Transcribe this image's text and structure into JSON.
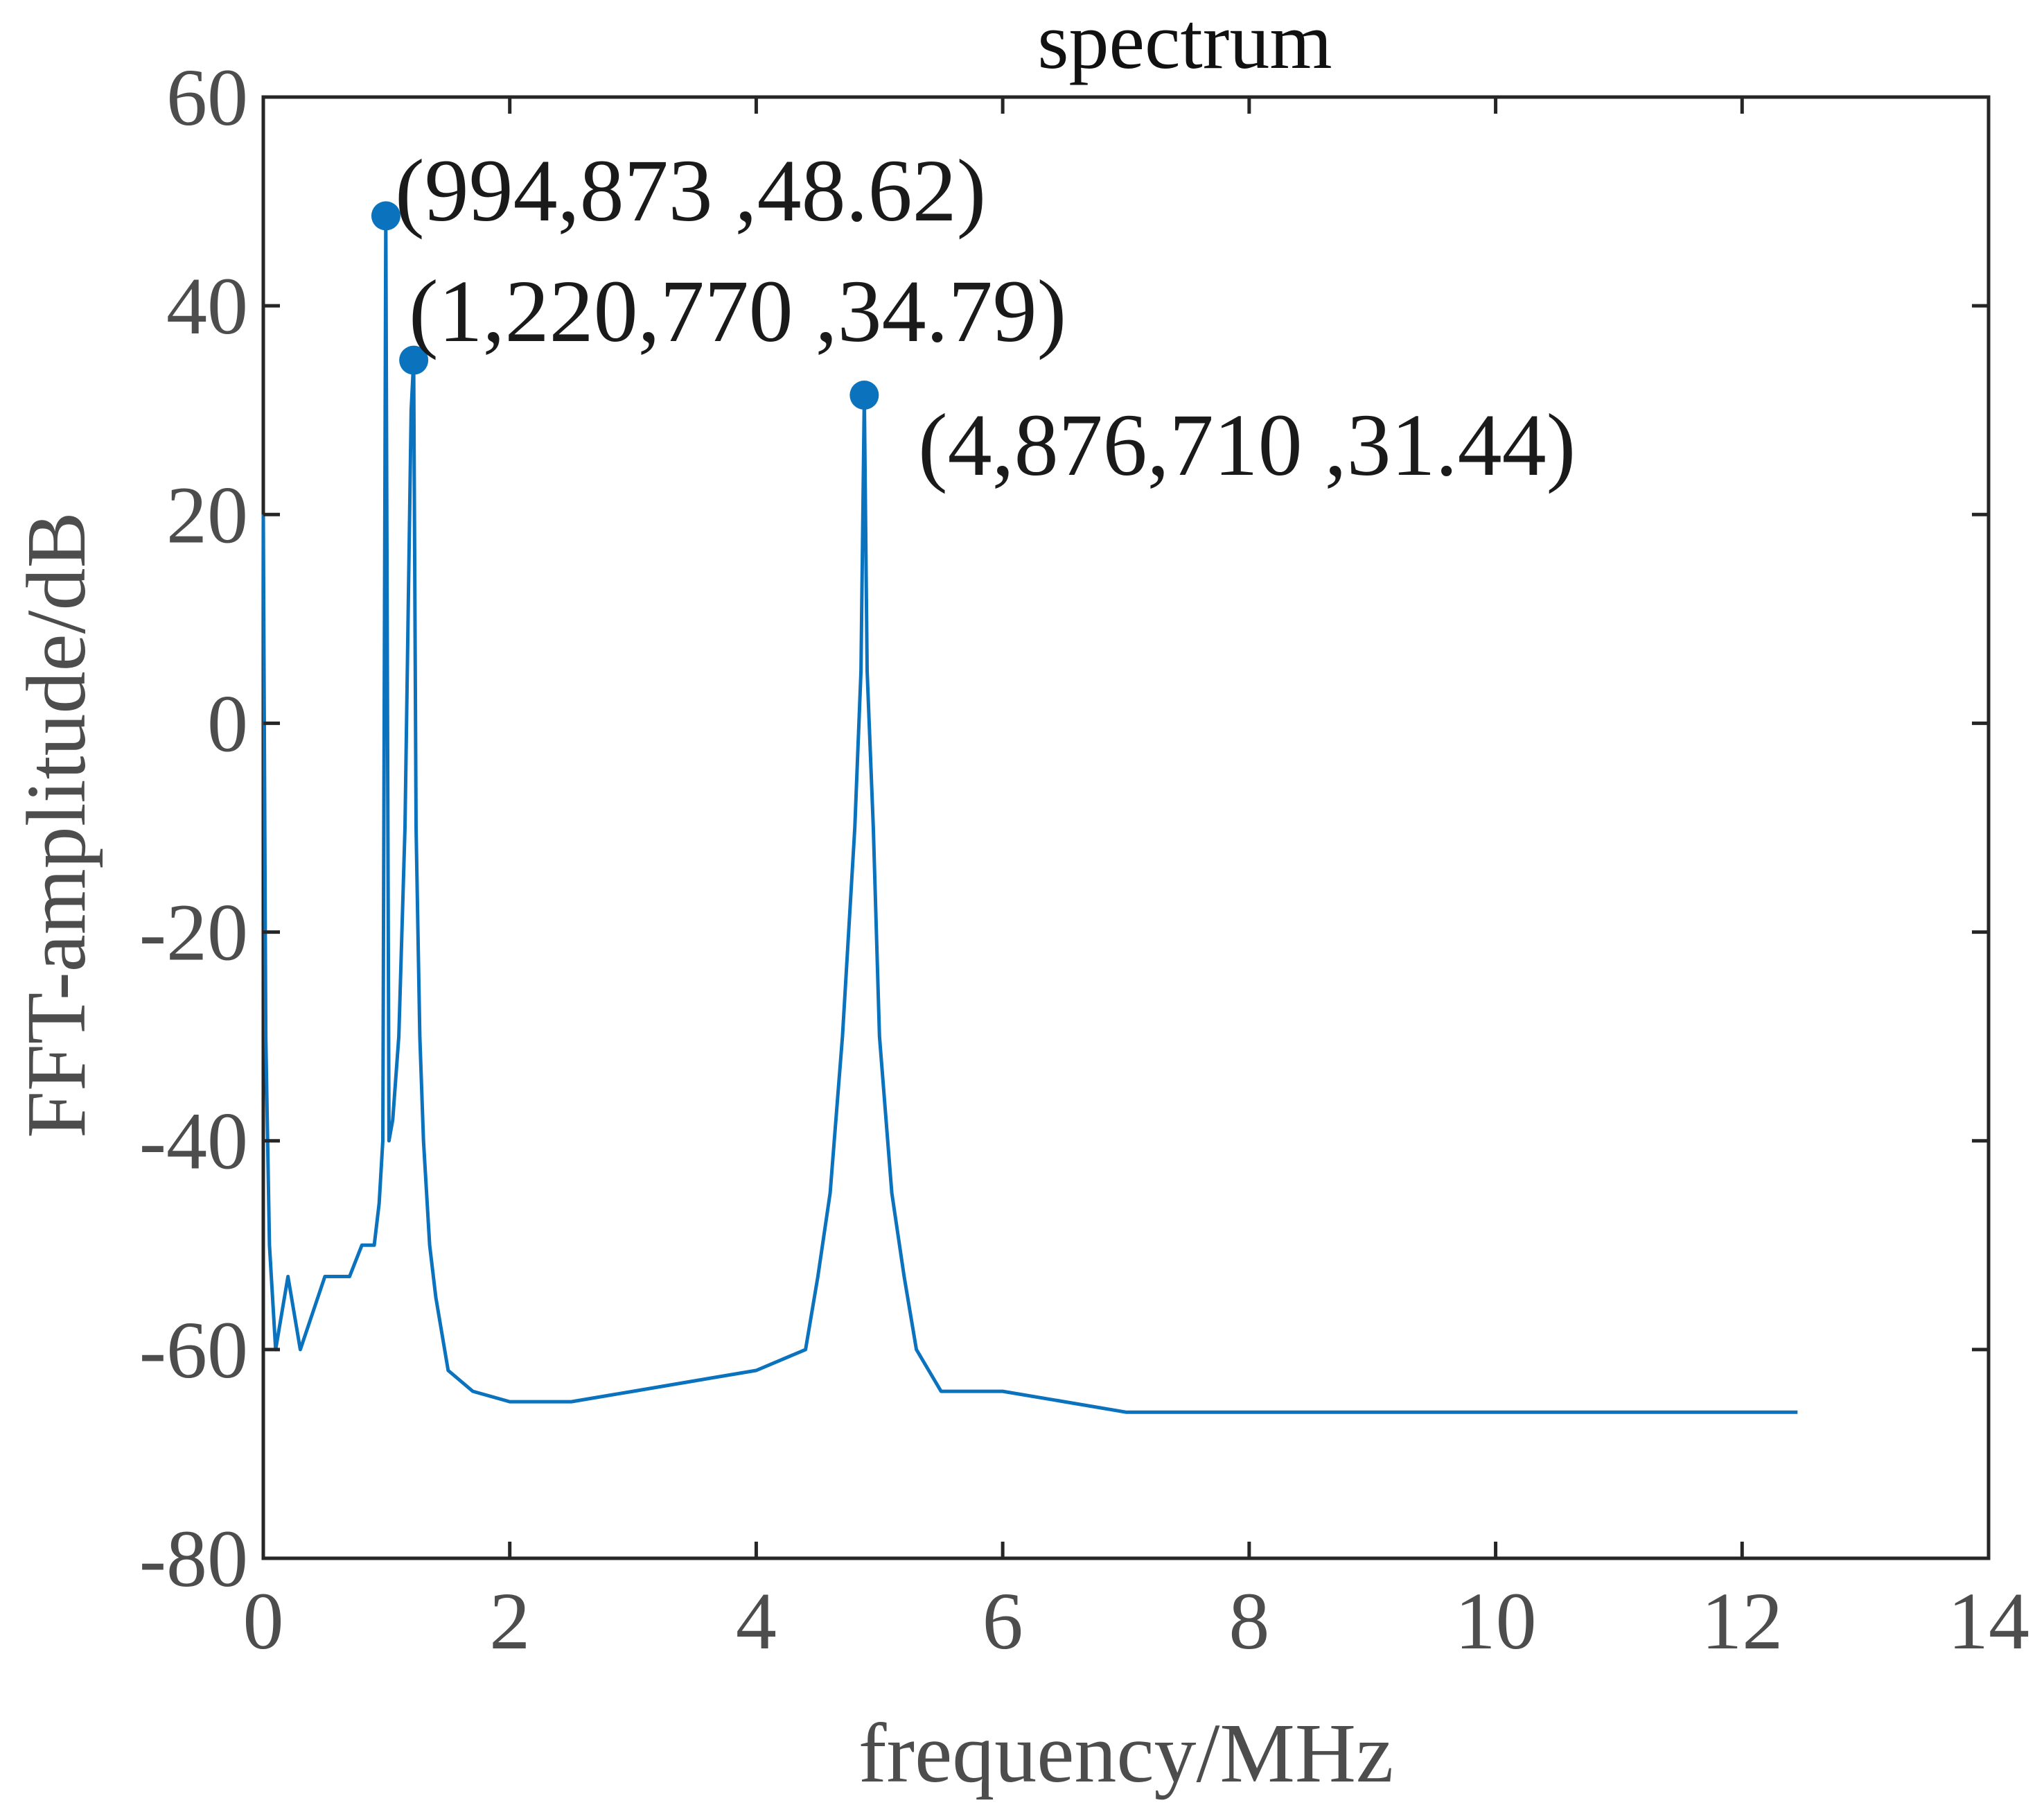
{
  "chart_data": {
    "type": "line",
    "title": "spectrum",
    "xlabel": "frequency/MHz",
    "ylabel": "FFT-amplitude/dB",
    "xlim": [
      0,
      14
    ],
    "ylim": [
      -80,
      60
    ],
    "xticks": [
      "0",
      "2",
      "4",
      "6",
      "8",
      "10",
      "12",
      "14"
    ],
    "yticks": [
      "60",
      "40",
      "20",
      "0",
      "-20",
      "-40",
      "-60",
      "-80"
    ],
    "grid": false,
    "color": "#0b72bd",
    "series": [
      {
        "name": "spectrum",
        "x": [
          0.0,
          0.02,
          0.05,
          0.1,
          0.2,
          0.3,
          0.5,
          0.7,
          0.8,
          0.9,
          0.94,
          0.97,
          0.994,
          1.02,
          1.05,
          1.1,
          1.15,
          1.2,
          1.22,
          1.24,
          1.27,
          1.3,
          1.35,
          1.4,
          1.5,
          1.7,
          2.0,
          2.5,
          3.0,
          3.5,
          4.0,
          4.4,
          4.5,
          4.6,
          4.7,
          4.8,
          4.85,
          4.877,
          4.9,
          4.95,
          5.0,
          5.1,
          5.2,
          5.3,
          5.4,
          5.5,
          6.0,
          6.5,
          7.0,
          8.0,
          9.0,
          10.0,
          11.0,
          12.0,
          12.45
        ],
        "y": [
          20,
          -30,
          -50,
          -60,
          -53,
          -60,
          -53,
          -53,
          -50,
          -50,
          -46,
          -40,
          48.62,
          -40,
          -38,
          -30,
          -10,
          30,
          34.79,
          -10,
          -30,
          -40,
          -50,
          -55,
          -62,
          -64,
          -65,
          -65,
          -64,
          -63,
          -62,
          -60,
          -53,
          -45,
          -30,
          -10,
          5,
          31.44,
          5,
          -10,
          -30,
          -45,
          -53,
          -60,
          -62,
          -64,
          -64,
          -65,
          -66,
          -66,
          -66,
          -66,
          -66,
          -66,
          -66
        ]
      }
    ],
    "markers": [
      {
        "x": 0.994873,
        "y": 48.62,
        "label": "(994,873  ,48.62)"
      },
      {
        "x": 1.22077,
        "y": 34.79,
        "label": "(1,220,770  ,34.79)"
      },
      {
        "x": 4.87671,
        "y": 31.44,
        "label": "(4,876,710  ,31.44)"
      }
    ]
  }
}
